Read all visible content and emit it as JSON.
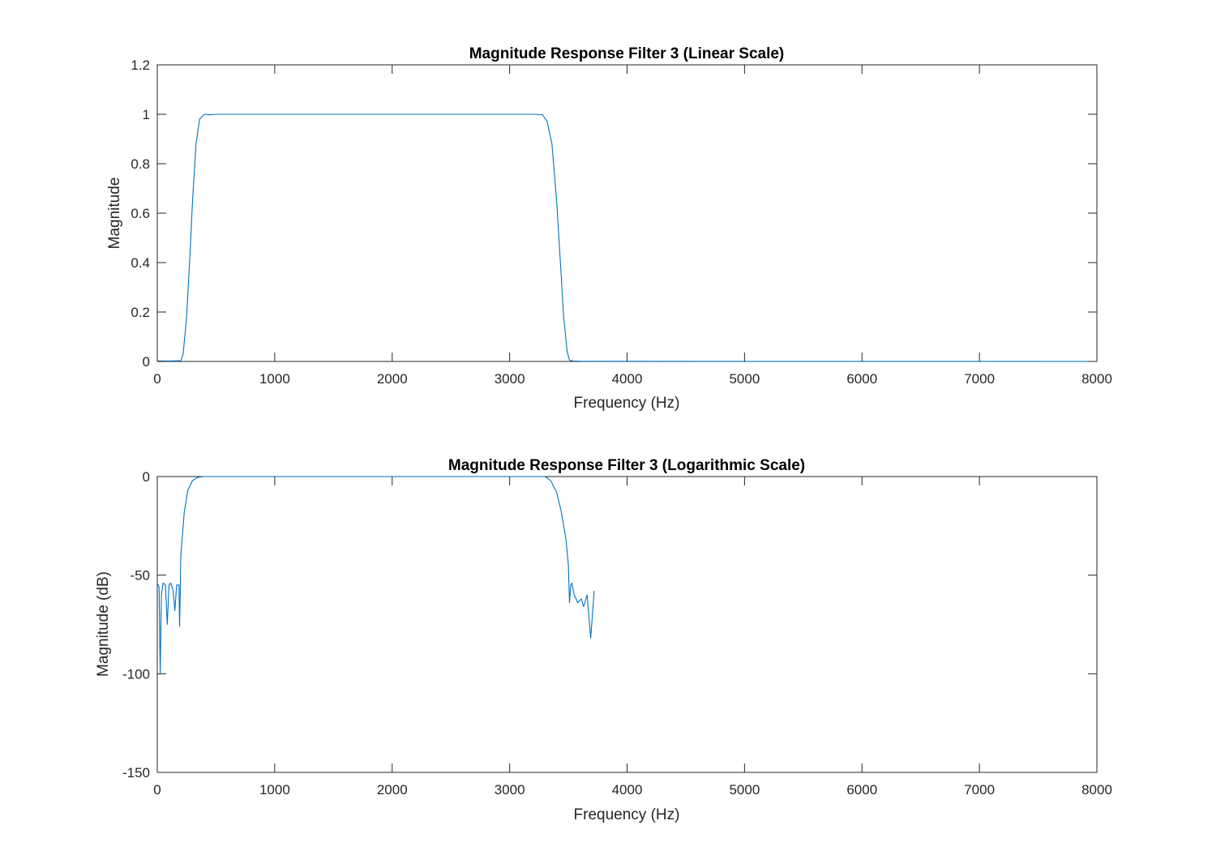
{
  "chart_data": [
    {
      "type": "line",
      "title": "Magnitude Response Filter 3 (Linear Scale)",
      "xlabel": "Frequency (Hz)",
      "ylabel": "Magnitude",
      "xlim": [
        0,
        8000
      ],
      "ylim": [
        0,
        1.2
      ],
      "x_ticks": [
        0,
        1000,
        2000,
        3000,
        4000,
        5000,
        6000,
        7000,
        8000
      ],
      "x_tick_labels": [
        "0",
        "1000",
        "2000",
        "3000",
        "4000",
        "5000",
        "6000",
        "7000",
        "8000"
      ],
      "y_ticks": [
        0,
        0.2,
        0.4,
        0.6,
        0.8,
        1,
        1.2
      ],
      "y_tick_labels": [
        "0",
        "0.2",
        "0.4",
        "0.6",
        "0.8",
        "1",
        "1.2"
      ],
      "grid": false,
      "color": "#0072BD",
      "series": [
        {
          "x": [
            0,
            100,
            200,
            220,
            250,
            280,
            300,
            330,
            360,
            400,
            450,
            500,
            1000,
            1500,
            2000,
            2500,
            3000,
            3200,
            3280,
            3320,
            3360,
            3400,
            3430,
            3460,
            3490,
            3510,
            3540,
            3600,
            4000,
            5000,
            6000,
            7000,
            8000
          ],
          "y": [
            0.002,
            0.002,
            0.003,
            0.03,
            0.18,
            0.45,
            0.65,
            0.88,
            0.98,
            1.0,
            0.998,
            1.0,
            1.0,
            1.0,
            1.0,
            1.0,
            1.0,
            1.0,
            0.998,
            0.97,
            0.88,
            0.65,
            0.42,
            0.18,
            0.04,
            0.005,
            0.002,
            0.001,
            0.0007,
            0.0004,
            0.0003,
            0.0002,
            0.0001
          ]
        }
      ]
    },
    {
      "type": "line",
      "title": "Magnitude Response Filter 3 (Logarithmic Scale)",
      "xlabel": "Frequency (Hz)",
      "ylabel": "Magnitude (dB)",
      "xlim": [
        0,
        8000
      ],
      "ylim": [
        -150,
        0
      ],
      "x_ticks": [
        0,
        1000,
        2000,
        3000,
        4000,
        5000,
        6000,
        7000,
        8000
      ],
      "x_tick_labels": [
        "0",
        "1000",
        "2000",
        "3000",
        "4000",
        "5000",
        "6000",
        "7000",
        "8000"
      ],
      "y_ticks": [
        -150,
        -100,
        -50,
        0
      ],
      "y_tick_labels": [
        "-150",
        "-100",
        "-50",
        "0"
      ],
      "grid": false,
      "color": "#0072BD",
      "series": [
        {
          "x": [
            0,
            15,
            25,
            35,
            50,
            70,
            85,
            100,
            115,
            135,
            150,
            165,
            185,
            190,
            195,
            200,
            230,
            260,
            300,
            340,
            380,
            400,
            450,
            3300,
            3350,
            3400,
            3440,
            3480,
            3500,
            3510,
            3520,
            3530,
            3550,
            3580,
            3610,
            3630,
            3660,
            3690,
            3720
          ],
          "y": [
            -54,
            -56,
            -100,
            -60,
            -54,
            -55,
            -75,
            -55,
            -54,
            -58,
            -68,
            -55,
            -55,
            -76,
            -60,
            -40,
            -18,
            -7,
            -2,
            -0.5,
            -0.1,
            0,
            0,
            0,
            -2,
            -8,
            -18,
            -32,
            -45,
            -64,
            -55,
            -54,
            -60,
            -64,
            -62,
            -66,
            -60,
            -82,
            -58
          ]
        }
      ]
    }
  ]
}
